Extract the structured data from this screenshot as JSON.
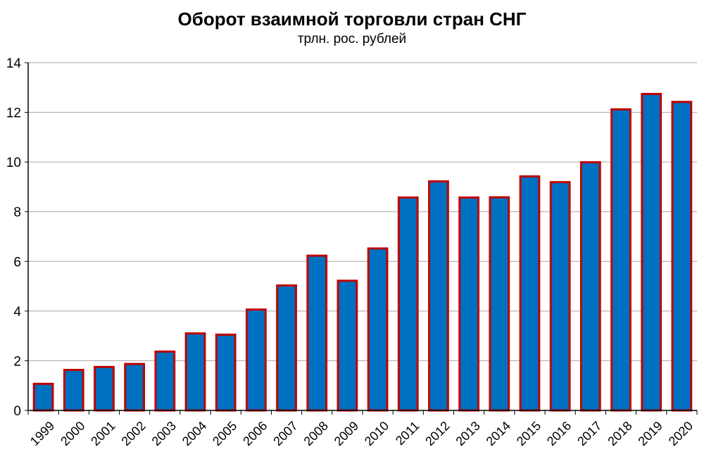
{
  "chart_data": {
    "type": "bar",
    "title": "Оборот взаимной торговли стран СНГ",
    "subtitle": "трлн. рос. рублей",
    "xlabel": "",
    "ylabel": "",
    "categories": [
      "1999",
      "2000",
      "2001",
      "2002",
      "2003",
      "2004",
      "2005",
      "2006",
      "2007",
      "2008",
      "2009",
      "2010",
      "2011",
      "2012",
      "2013",
      "2014",
      "2015",
      "2016",
      "2017",
      "2018",
      "2019",
      "2020"
    ],
    "values": [
      1.07,
      1.63,
      1.75,
      1.87,
      2.37,
      3.1,
      3.05,
      4.06,
      5.03,
      6.23,
      5.22,
      6.52,
      8.57,
      9.22,
      8.57,
      8.58,
      9.42,
      9.19,
      9.99,
      12.12,
      12.74,
      12.42
    ],
    "ylim": [
      0,
      14
    ],
    "yticks": [
      0,
      2,
      4,
      6,
      8,
      10,
      12,
      14
    ],
    "grid": true,
    "legend": "none",
    "colors": {
      "bar_fill": "#0070c0",
      "bar_stroke": "#c00000",
      "grid": "#a6a6a6",
      "axis": "#000000"
    }
  }
}
